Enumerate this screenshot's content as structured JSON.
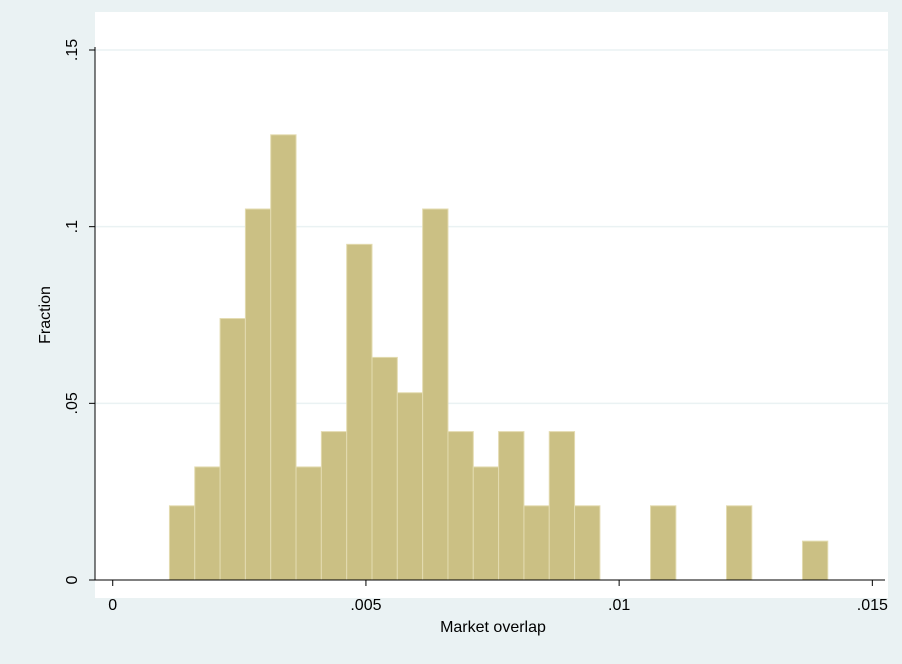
{
  "chart_data": {
    "type": "histogram",
    "x_label": "Market overlap",
    "y_label": "Fraction",
    "bins": [
      0.00112,
      0.00162,
      0.00212,
      0.00262,
      0.00312,
      0.00362,
      0.00412,
      0.00462,
      0.00512,
      0.00562,
      0.00612,
      0.00662,
      0.00712,
      0.00762,
      0.00812,
      0.00862,
      0.00912,
      0.00962,
      0.01012,
      0.01062,
      0.01112,
      0.01162,
      0.01212,
      0.01262,
      0.01312,
      0.01362,
      0.01412
    ],
    "values": [
      0.021,
      0.032,
      0.074,
      0.105,
      0.126,
      0.032,
      0.042,
      0.095,
      0.063,
      0.053,
      0.105,
      0.042,
      0.032,
      0.042,
      0.021,
      0.042,
      0.021,
      0,
      0,
      0.021,
      0,
      0,
      0.021,
      0,
      0,
      0.011
    ],
    "color": "#cbc084",
    "xlim": [
      -0.00035,
      0.01525
    ],
    "xticks": [
      0,
      {
        "value": 0.005,
        "label": ".005"
      },
      {
        "value": 0.01,
        "label": ".01"
      },
      {
        "value": 0.015,
        "label": ".015"
      }
    ],
    "ylim": [
      0,
      0.15
    ],
    "yticks": [
      0,
      {
        "value": 0.05,
        "label": ".05"
      },
      {
        "value": 0.1,
        "label": ".1"
      },
      {
        "value": 0.15,
        "label": ".15"
      }
    ],
    "grid": true
  }
}
